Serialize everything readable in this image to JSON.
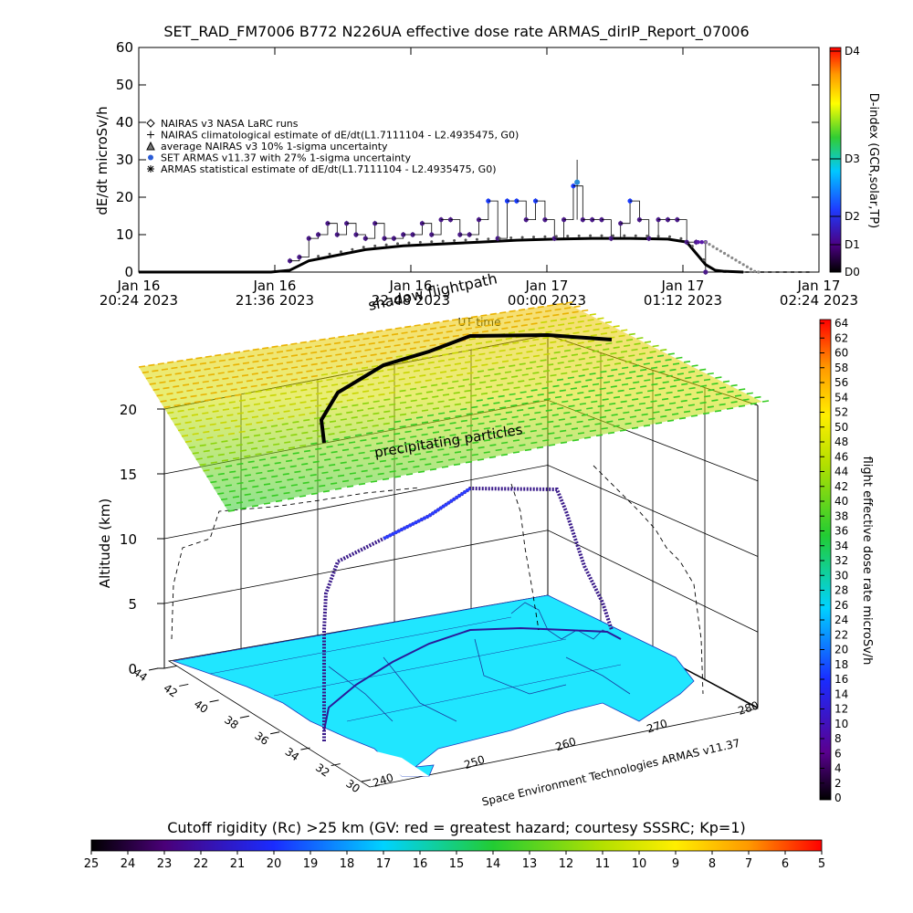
{
  "chart_data": [
    {
      "type": "scatter",
      "title": "SET_RAD_FM7006   B772 N226UA effective dose rate ARMAS_dirIP_Report_07006",
      "ylabel": "dE/dt microSv/h",
      "ylim": [
        0,
        60
      ],
      "yticks": [
        "0",
        "10",
        "20",
        "30",
        "40",
        "50",
        "60"
      ],
      "xticks": [
        {
          "line1": "Jan 16",
          "line2": "20:24 2023"
        },
        {
          "line1": "Jan 16",
          "line2": "21:36 2023"
        },
        {
          "line1": "Jan 16",
          "line2": "22:48 2023"
        },
        {
          "line1": "Jan 17",
          "line2": "00:00 2023"
        },
        {
          "line1": "Jan 17",
          "line2": "01:12 2023"
        },
        {
          "line1": "Jan 17",
          "line2": "02:24 2023"
        }
      ],
      "xlim": [
        0,
        360
      ],
      "x_unit_note": "",
      "xlabel": "UT time",
      "legend": [
        "NAIRAS v3 NASA LaRC runs",
        "NAIRAS climatological estimate of dE/dt(L1.7111104 - L2.4935475, G0)",
        "average NAIRAS v3 10% 1-sigma uncertainty",
        "SET ARMAS v11.37 with 27% 1-sigma uncertainty",
        "ARMAS statistical estimate of dE/dt(L1.7111104 - L2.4935475, G0)"
      ],
      "legend_placement": "upper-left",
      "series": [
        {
          "name": "NAIRAS climatological estimate",
          "x": [
            0,
            70,
            80,
            90,
            100,
            110,
            120,
            140,
            160,
            180,
            200,
            220,
            240,
            260,
            280,
            290,
            295,
            300,
            305,
            310,
            320
          ],
          "y": [
            0,
            0,
            0.5,
            3,
            4,
            5,
            6,
            7,
            7.5,
            8,
            8.5,
            8.8,
            9,
            9,
            8.8,
            8,
            5,
            2,
            0.5,
            0.2,
            0
          ]
        },
        {
          "name": "SET ARMAS v11.37",
          "x": [
            80,
            85,
            90,
            95,
            100,
            105,
            110,
            115,
            120,
            125,
            130,
            135,
            140,
            145,
            150,
            155,
            160,
            165,
            170,
            175,
            180,
            185,
            190,
            195,
            200,
            205,
            210,
            215,
            220,
            225,
            230,
            235,
            240,
            245,
            250,
            255,
            260,
            265,
            270,
            275,
            280,
            285,
            290,
            295,
            300
          ],
          "y": [
            3,
            4,
            9,
            10,
            13,
            10,
            13,
            10,
            9,
            13,
            9,
            9,
            10,
            10,
            13,
            10,
            14,
            14,
            10,
            10,
            14,
            19,
            9,
            19,
            19,
            14,
            19,
            14,
            9,
            14,
            23,
            14,
            14,
            14,
            9,
            13,
            19,
            14,
            9,
            14,
            14,
            14,
            8,
            8,
            0
          ]
        }
      ],
      "dindex_colorbar": {
        "label": "D-index (GCR,solar,TP)",
        "ticks": [
          "D0",
          "D1",
          "D2",
          "D3",
          "D4"
        ]
      }
    },
    {
      "type": "3d-flightpath",
      "title_top": "shadow flightpath",
      "time_label": "UT time",
      "region_label": "precipitating particles",
      "zlabel": "Altitude (km)",
      "zlim": [
        0,
        20
      ],
      "zticks": [
        "0",
        "5",
        "10",
        "15",
        "20"
      ],
      "lat_ticks": [
        "44",
        "42",
        "40",
        "38",
        "36",
        "34",
        "32",
        "30"
      ],
      "lon_ticks": [
        "240",
        "250",
        "260",
        "270",
        "280"
      ],
      "credit": "Space Environment Technologies ARMAS v11.37",
      "dose_colorbar": {
        "label": "flight effective dose rate microSv/h",
        "ticks": [
          "0",
          "2",
          "4",
          "6",
          "8",
          "10",
          "12",
          "14",
          "16",
          "18",
          "20",
          "22",
          "24",
          "26",
          "28",
          "30",
          "32",
          "34",
          "36",
          "38",
          "40",
          "42",
          "44",
          "46",
          "48",
          "50",
          "52",
          "54",
          "56",
          "58",
          "60",
          "62",
          "64"
        ]
      },
      "cutoff_colorbar": {
        "label": "Cutoff rigidity (Rc) >25 km (GV: red = greatest hazard; courtesy SSSRC; Kp=1)",
        "ticks": [
          "25",
          "24",
          "23",
          "22",
          "21",
          "20",
          "19",
          "18",
          "17",
          "16",
          "15",
          "14",
          "13",
          "12",
          "11",
          "10",
          "9",
          "8",
          "7",
          "6",
          "5"
        ]
      }
    }
  ]
}
